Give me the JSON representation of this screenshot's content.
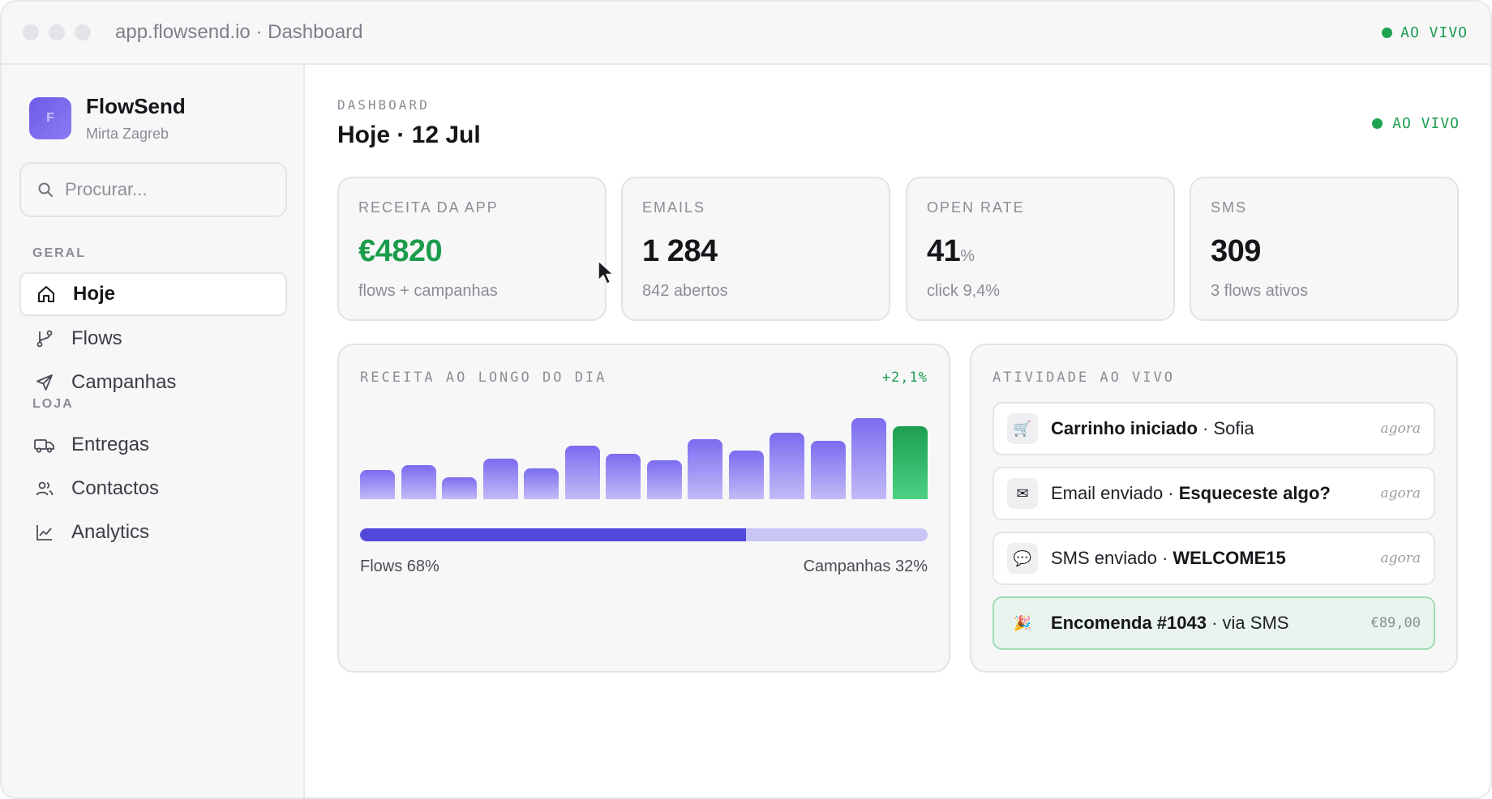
{
  "window": {
    "address": "app.flowsend.io · Dashboard",
    "live_label": "AO VIVO"
  },
  "brand": {
    "logo_letter": "F",
    "name": "FlowSend",
    "user": "Mirta Zagreb"
  },
  "search": {
    "placeholder": "Procurar..."
  },
  "sidebar": {
    "section_general": "GERAL",
    "section_store": "LOJA",
    "items": [
      {
        "label": "Hoje",
        "icon": "home-icon",
        "active": true
      },
      {
        "label": "Flows",
        "icon": "branch-icon"
      },
      {
        "label": "Campanhas",
        "icon": "send-icon"
      },
      {
        "label": "Entregas",
        "icon": "truck-icon"
      },
      {
        "label": "Contactos",
        "icon": "users-icon"
      },
      {
        "label": "Analytics",
        "icon": "chart-line-icon"
      }
    ]
  },
  "header": {
    "eyebrow": "DASHBOARD",
    "title": "Hoje · 12 Jul",
    "live_label": "AO VIVO"
  },
  "kpis": [
    {
      "label": "RECEITA DA APP",
      "value": "€4820",
      "unit": "",
      "sub": "flows + campanhas"
    },
    {
      "label": "EMAILS",
      "value": "1 284",
      "unit": "",
      "sub": "842 abertos"
    },
    {
      "label": "OPEN RATE",
      "value": "41",
      "unit": "%",
      "sub": "click 9,4%"
    },
    {
      "label": "SMS",
      "value": "309",
      "unit": "",
      "sub": "3 flows ativos"
    }
  ],
  "revenue_card": {
    "title": "RECEITA AO LONGO DO DIA",
    "delta": "+2,1%",
    "split_left": "Flows 68%",
    "split_right": "Campanhas 32%",
    "flows_share": 0.68
  },
  "chart_data": {
    "type": "bar",
    "values": [
      36,
      42,
      27,
      50,
      38,
      66,
      56,
      48,
      74,
      60,
      82,
      72,
      100,
      90
    ],
    "highlight_last": true
  },
  "activity": {
    "title": "ATIVIDADE AO VIVO",
    "items": [
      {
        "icon": "cart-icon",
        "glyph": "🛒",
        "strong": "Carrinho iniciado",
        "rest": " · Sofia",
        "time": "agora"
      },
      {
        "icon": "mail-icon",
        "glyph": "✉",
        "plain": "Email enviado · ",
        "strong_after": "Esqueceste algo?",
        "time": "agora"
      },
      {
        "icon": "chat-icon",
        "glyph": "💬",
        "plain": "SMS enviado · ",
        "strong_after": "WELCOME15",
        "time": "agora"
      },
      {
        "icon": "party-icon",
        "glyph": "🎉",
        "strong": "Encomenda #1043",
        "rest": " · via SMS",
        "amount": "€89,00"
      }
    ]
  },
  "colors": {
    "accent": "#5248db",
    "success": "#1a9c4b",
    "bar": "#7b6cf0"
  }
}
